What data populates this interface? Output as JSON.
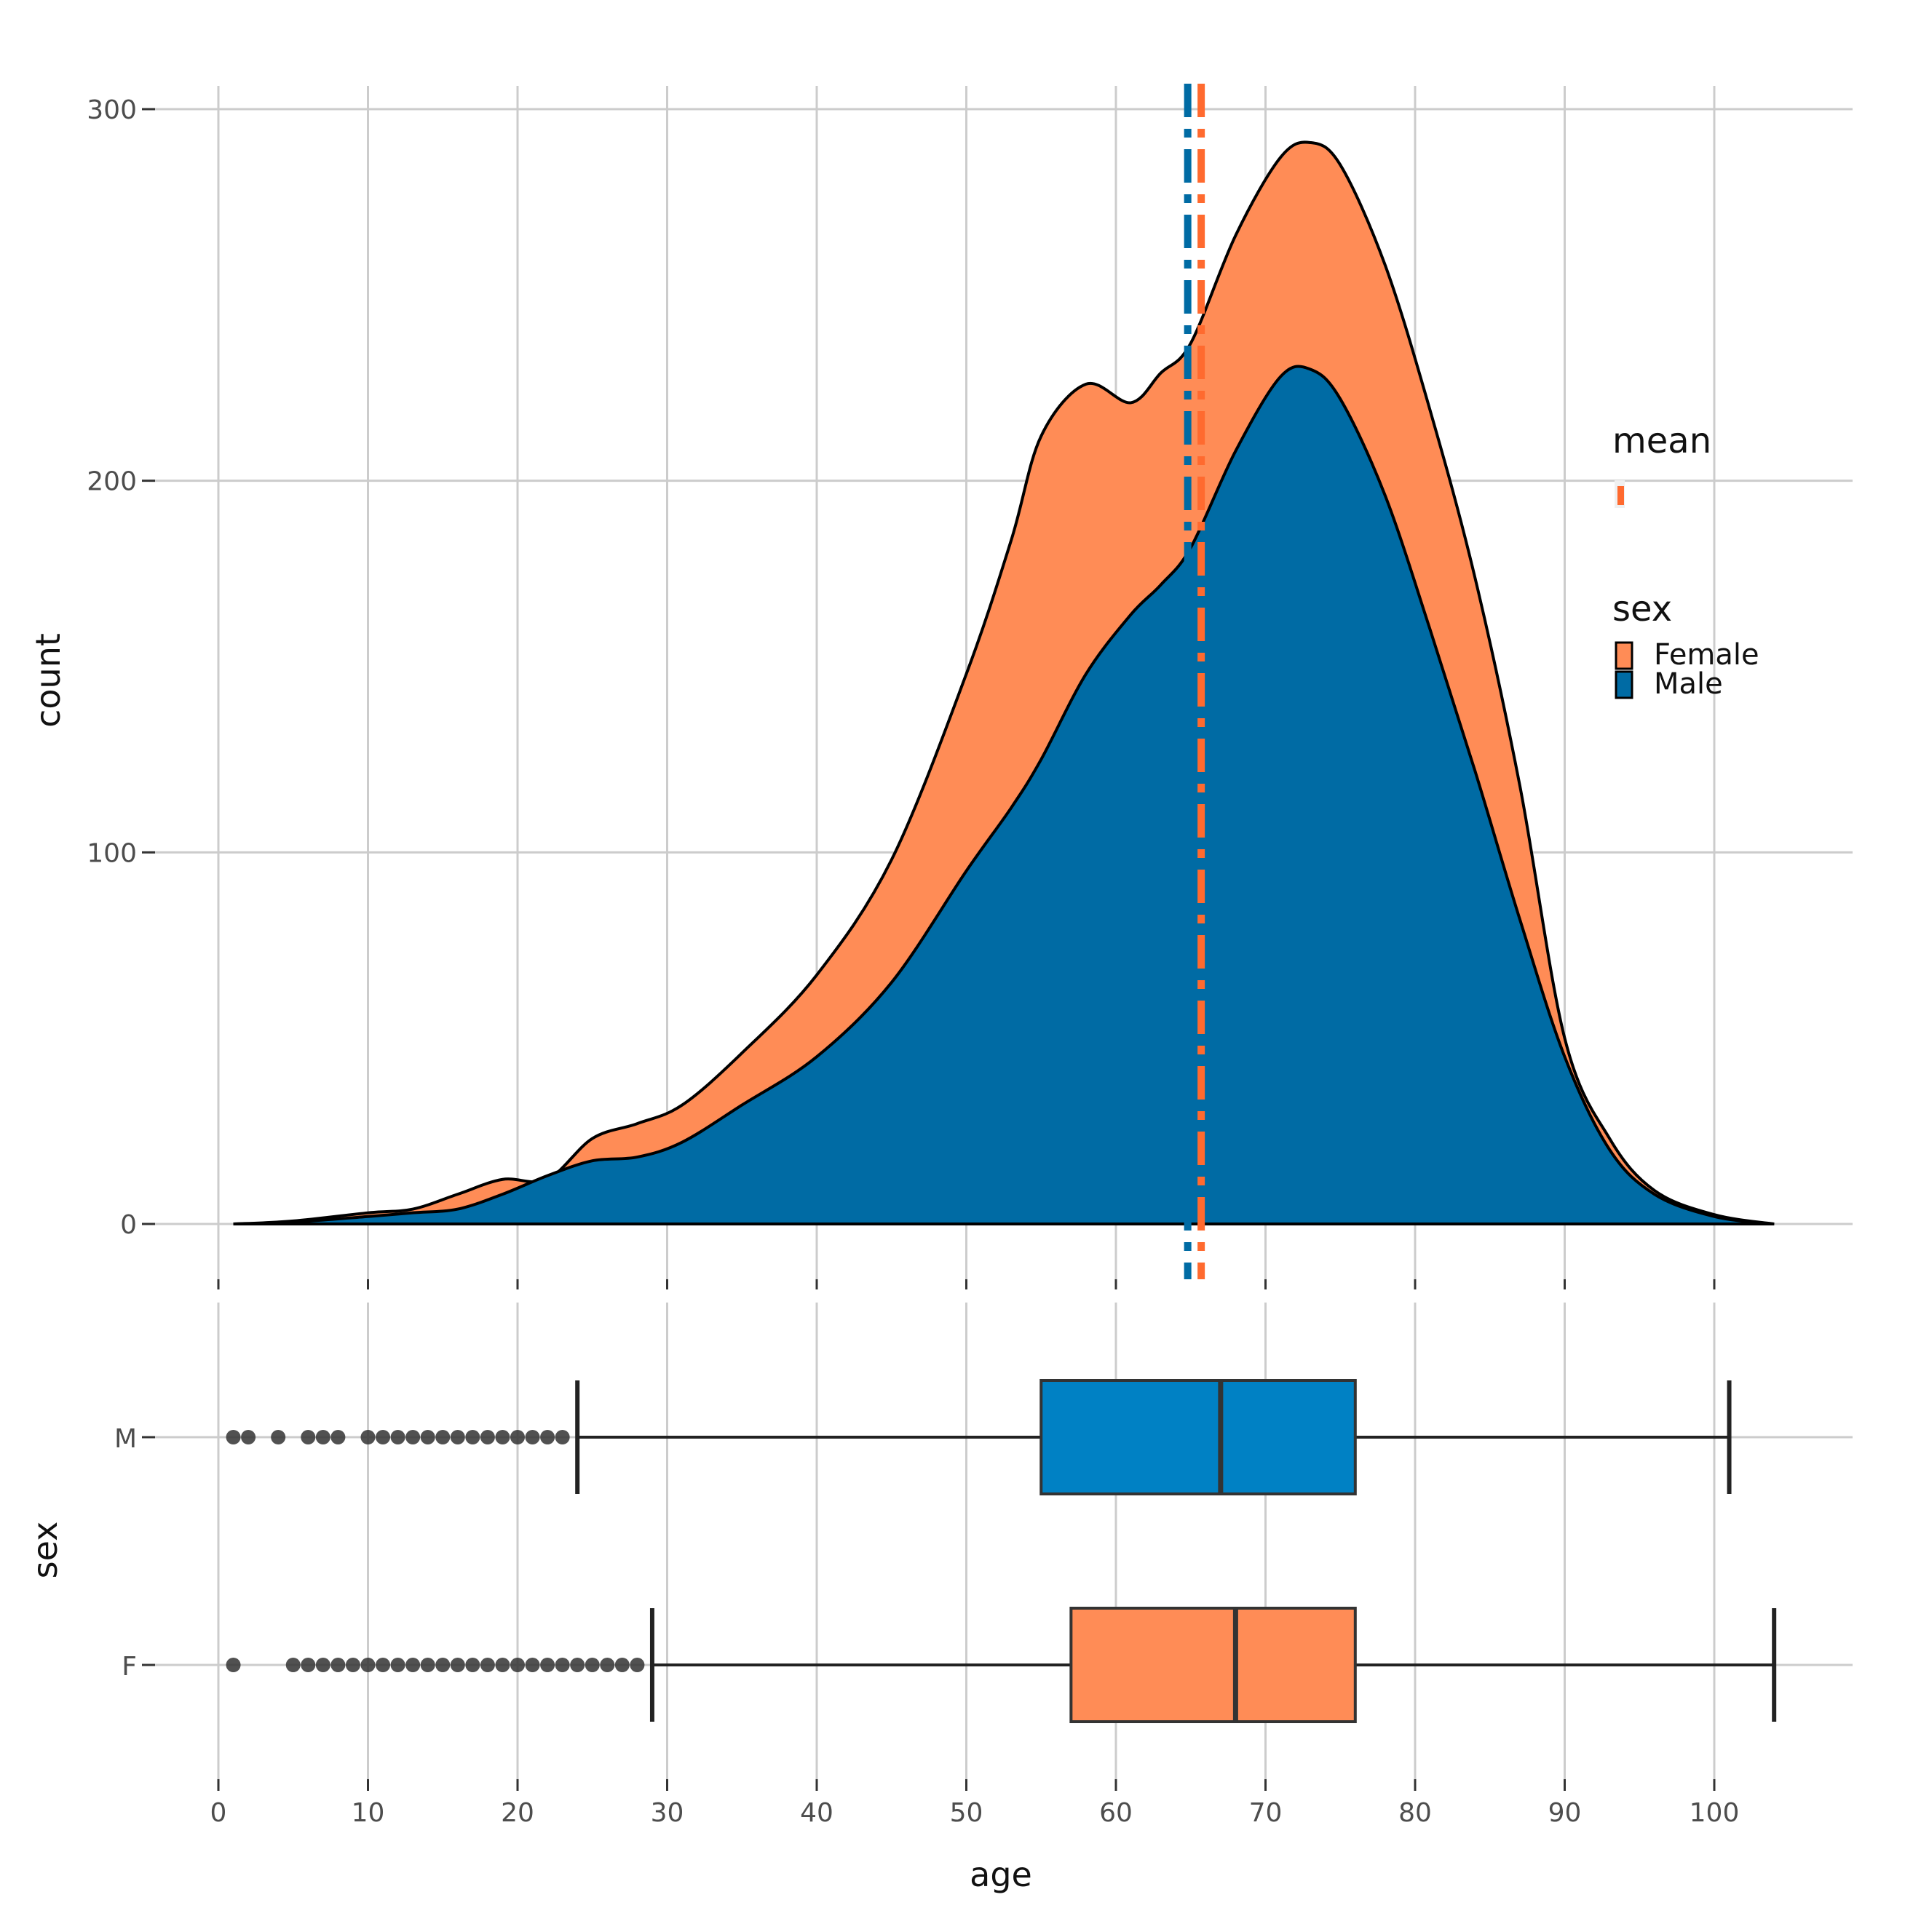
{
  "chart_data": [
    {
      "type": "area",
      "subtype": "stacked-density",
      "xlabel": "",
      "ylabel": "count",
      "xlim": [
        0,
        104
      ],
      "ylim": [
        0,
        300
      ],
      "yticks": [
        "0",
        "100",
        "200",
        "300"
      ],
      "x": [
        1,
        5,
        10,
        13,
        16,
        19,
        22,
        25,
        28,
        31,
        35,
        40,
        45,
        50,
        53,
        55,
        58,
        61,
        63,
        65,
        68,
        71,
        73,
        75,
        78,
        81,
        84,
        87,
        90,
        93,
        96,
        100,
        104
      ],
      "series": [
        {
          "name": "Male",
          "color": "#006ba4",
          "values": [
            0,
            0.5,
            2,
            3,
            4,
            8,
            13,
            17,
            18,
            22,
            32,
            45,
            65,
            95,
            112,
            125,
            148,
            164,
            172,
            182,
            208,
            228,
            230,
            222,
            196,
            160,
            122,
            82,
            45,
            20,
            8,
            2,
            0
          ]
        },
        {
          "name": "Female",
          "color": "#ff8c56",
          "values": [
            0,
            0.3,
            1,
            1,
            4,
            4,
            -1,
            6,
            9,
            10,
            14,
            22,
            33,
            53,
            72,
            87,
            78,
            57,
            57,
            55,
            58,
            59,
            61,
            63,
            62,
            59,
            52,
            36,
            5,
            3,
            1,
            0.5,
            0
          ]
        }
      ],
      "mean_lines": [
        {
          "name": "Male mean",
          "x": 64.8,
          "color": "#006ba4",
          "style": "dot-dash"
        },
        {
          "name": "Female mean",
          "x": 65.7,
          "color": "#ff6a2f",
          "style": "dot-dash"
        }
      ],
      "legend": {
        "mean_title": "mean",
        "sex_title": "sex",
        "entries": [
          {
            "label": "Female",
            "color": "#ff8c56"
          },
          {
            "label": "Male",
            "color": "#006ba4"
          }
        ],
        "position": "right"
      }
    },
    {
      "type": "boxplot",
      "xlabel": "age",
      "ylabel": "sex",
      "xlim": [
        0,
        104
      ],
      "xticks": [
        "0",
        "10",
        "20",
        "30",
        "40",
        "50",
        "60",
        "70",
        "80",
        "90",
        "100"
      ],
      "categories": [
        "M",
        "F"
      ],
      "boxes": [
        {
          "name": "M",
          "color": "#0081c4",
          "whisker_low": 24,
          "q1": 55,
          "median": 67,
          "q3": 76,
          "whisker_high": 101,
          "outliers": [
            1,
            2,
            4,
            6,
            7,
            8,
            10,
            11,
            12,
            13,
            14,
            15,
            16,
            17,
            18,
            19,
            20,
            21,
            22,
            23
          ]
        },
        {
          "name": "F",
          "color": "#ff8c56",
          "whisker_low": 29,
          "q1": 57,
          "median": 68,
          "q3": 76,
          "whisker_high": 104,
          "outliers": [
            1,
            5,
            6,
            7,
            8,
            9,
            10,
            11,
            12,
            13,
            14,
            15,
            16,
            17,
            18,
            19,
            20,
            21,
            22,
            23,
            24,
            25,
            26,
            27,
            28
          ]
        }
      ]
    }
  ]
}
